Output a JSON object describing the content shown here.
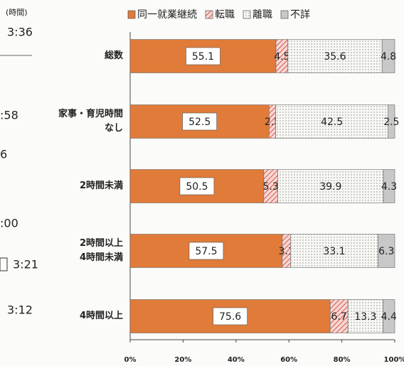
{
  "chart_data": {
    "type": "stacked_barh",
    "categories": [
      "総数",
      "家事・育児時間\nなし",
      "2時間未満",
      "2時間以上\n4時間未満",
      "4時間以上"
    ],
    "series": [
      {
        "name": "同一就業継続",
        "color": "#e07b39",
        "pattern": "solid",
        "values": [
          55.1,
          52.5,
          50.5,
          57.5,
          75.6
        ]
      },
      {
        "name": "転職",
        "color": "#d9534f",
        "pattern": "hatch",
        "values": [
          4.5,
          2.5,
          5.3,
          3.1,
          6.7
        ]
      },
      {
        "name": "離職",
        "color": "#888888",
        "pattern": "dots",
        "values": [
          35.6,
          42.5,
          39.9,
          33.1,
          13.3
        ]
      },
      {
        "name": "不詳",
        "color": "#c8c8c8",
        "pattern": "solid",
        "values": [
          4.8,
          2.5,
          4.3,
          6.3,
          4.4
        ]
      }
    ],
    "xlim": [
      0,
      100
    ],
    "xticks": [
      {
        "value": 0,
        "label": "0%"
      },
      {
        "value": 20,
        "label": "20%"
      },
      {
        "value": 40,
        "label": "40%"
      },
      {
        "value": 60,
        "label": "60%"
      },
      {
        "value": 80,
        "label": "80%"
      },
      {
        "value": 100,
        "label": "100%"
      }
    ],
    "legend": "top"
  },
  "left_fragments": [
    "(時間)",
    "3:36",
    ":58",
    "6",
    ":00",
    "3:21",
    "3:12"
  ]
}
